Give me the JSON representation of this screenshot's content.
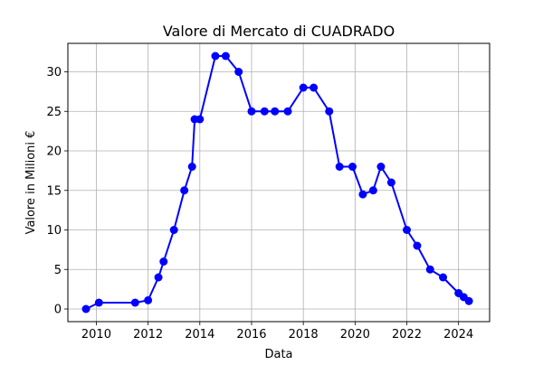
{
  "chart_data": {
    "type": "line",
    "title": "Valore di Mercato di CUADRADO",
    "xlabel": "Data",
    "ylabel": "Valore in Milioni €",
    "xlim": [
      2008.9,
      2025.2
    ],
    "ylim": [
      -1.6,
      33.6
    ],
    "x_ticks": [
      2010,
      2012,
      2014,
      2016,
      2018,
      2020,
      2022,
      2024
    ],
    "y_ticks": [
      0,
      5,
      10,
      15,
      20,
      25,
      30
    ],
    "grid": true,
    "series": [
      {
        "color": "#0000ff",
        "marker": "circle",
        "points": [
          {
            "x": 2009.6,
            "y": 0
          },
          {
            "x": 2010.1,
            "y": 0.8
          },
          {
            "x": 2011.5,
            "y": 0.8
          },
          {
            "x": 2012.0,
            "y": 1.1
          },
          {
            "x": 2012.4,
            "y": 4
          },
          {
            "x": 2012.6,
            "y": 6
          },
          {
            "x": 2013.0,
            "y": 10
          },
          {
            "x": 2013.4,
            "y": 15
          },
          {
            "x": 2013.7,
            "y": 18
          },
          {
            "x": 2013.8,
            "y": 24
          },
          {
            "x": 2014.0,
            "y": 24
          },
          {
            "x": 2014.6,
            "y": 32
          },
          {
            "x": 2015.0,
            "y": 32
          },
          {
            "x": 2015.5,
            "y": 30
          },
          {
            "x": 2016.0,
            "y": 25
          },
          {
            "x": 2016.5,
            "y": 25
          },
          {
            "x": 2016.9,
            "y": 25
          },
          {
            "x": 2017.4,
            "y": 25
          },
          {
            "x": 2018.0,
            "y": 28
          },
          {
            "x": 2018.4,
            "y": 28
          },
          {
            "x": 2019.0,
            "y": 25
          },
          {
            "x": 2019.4,
            "y": 18
          },
          {
            "x": 2019.9,
            "y": 18
          },
          {
            "x": 2020.3,
            "y": 14.5
          },
          {
            "x": 2020.7,
            "y": 15
          },
          {
            "x": 2021.0,
            "y": 18
          },
          {
            "x": 2021.4,
            "y": 16
          },
          {
            "x": 2022.0,
            "y": 10
          },
          {
            "x": 2022.4,
            "y": 8
          },
          {
            "x": 2022.9,
            "y": 5
          },
          {
            "x": 2023.4,
            "y": 4
          },
          {
            "x": 2024.0,
            "y": 2
          },
          {
            "x": 2024.2,
            "y": 1.5
          },
          {
            "x": 2024.4,
            "y": 1
          }
        ]
      }
    ]
  }
}
